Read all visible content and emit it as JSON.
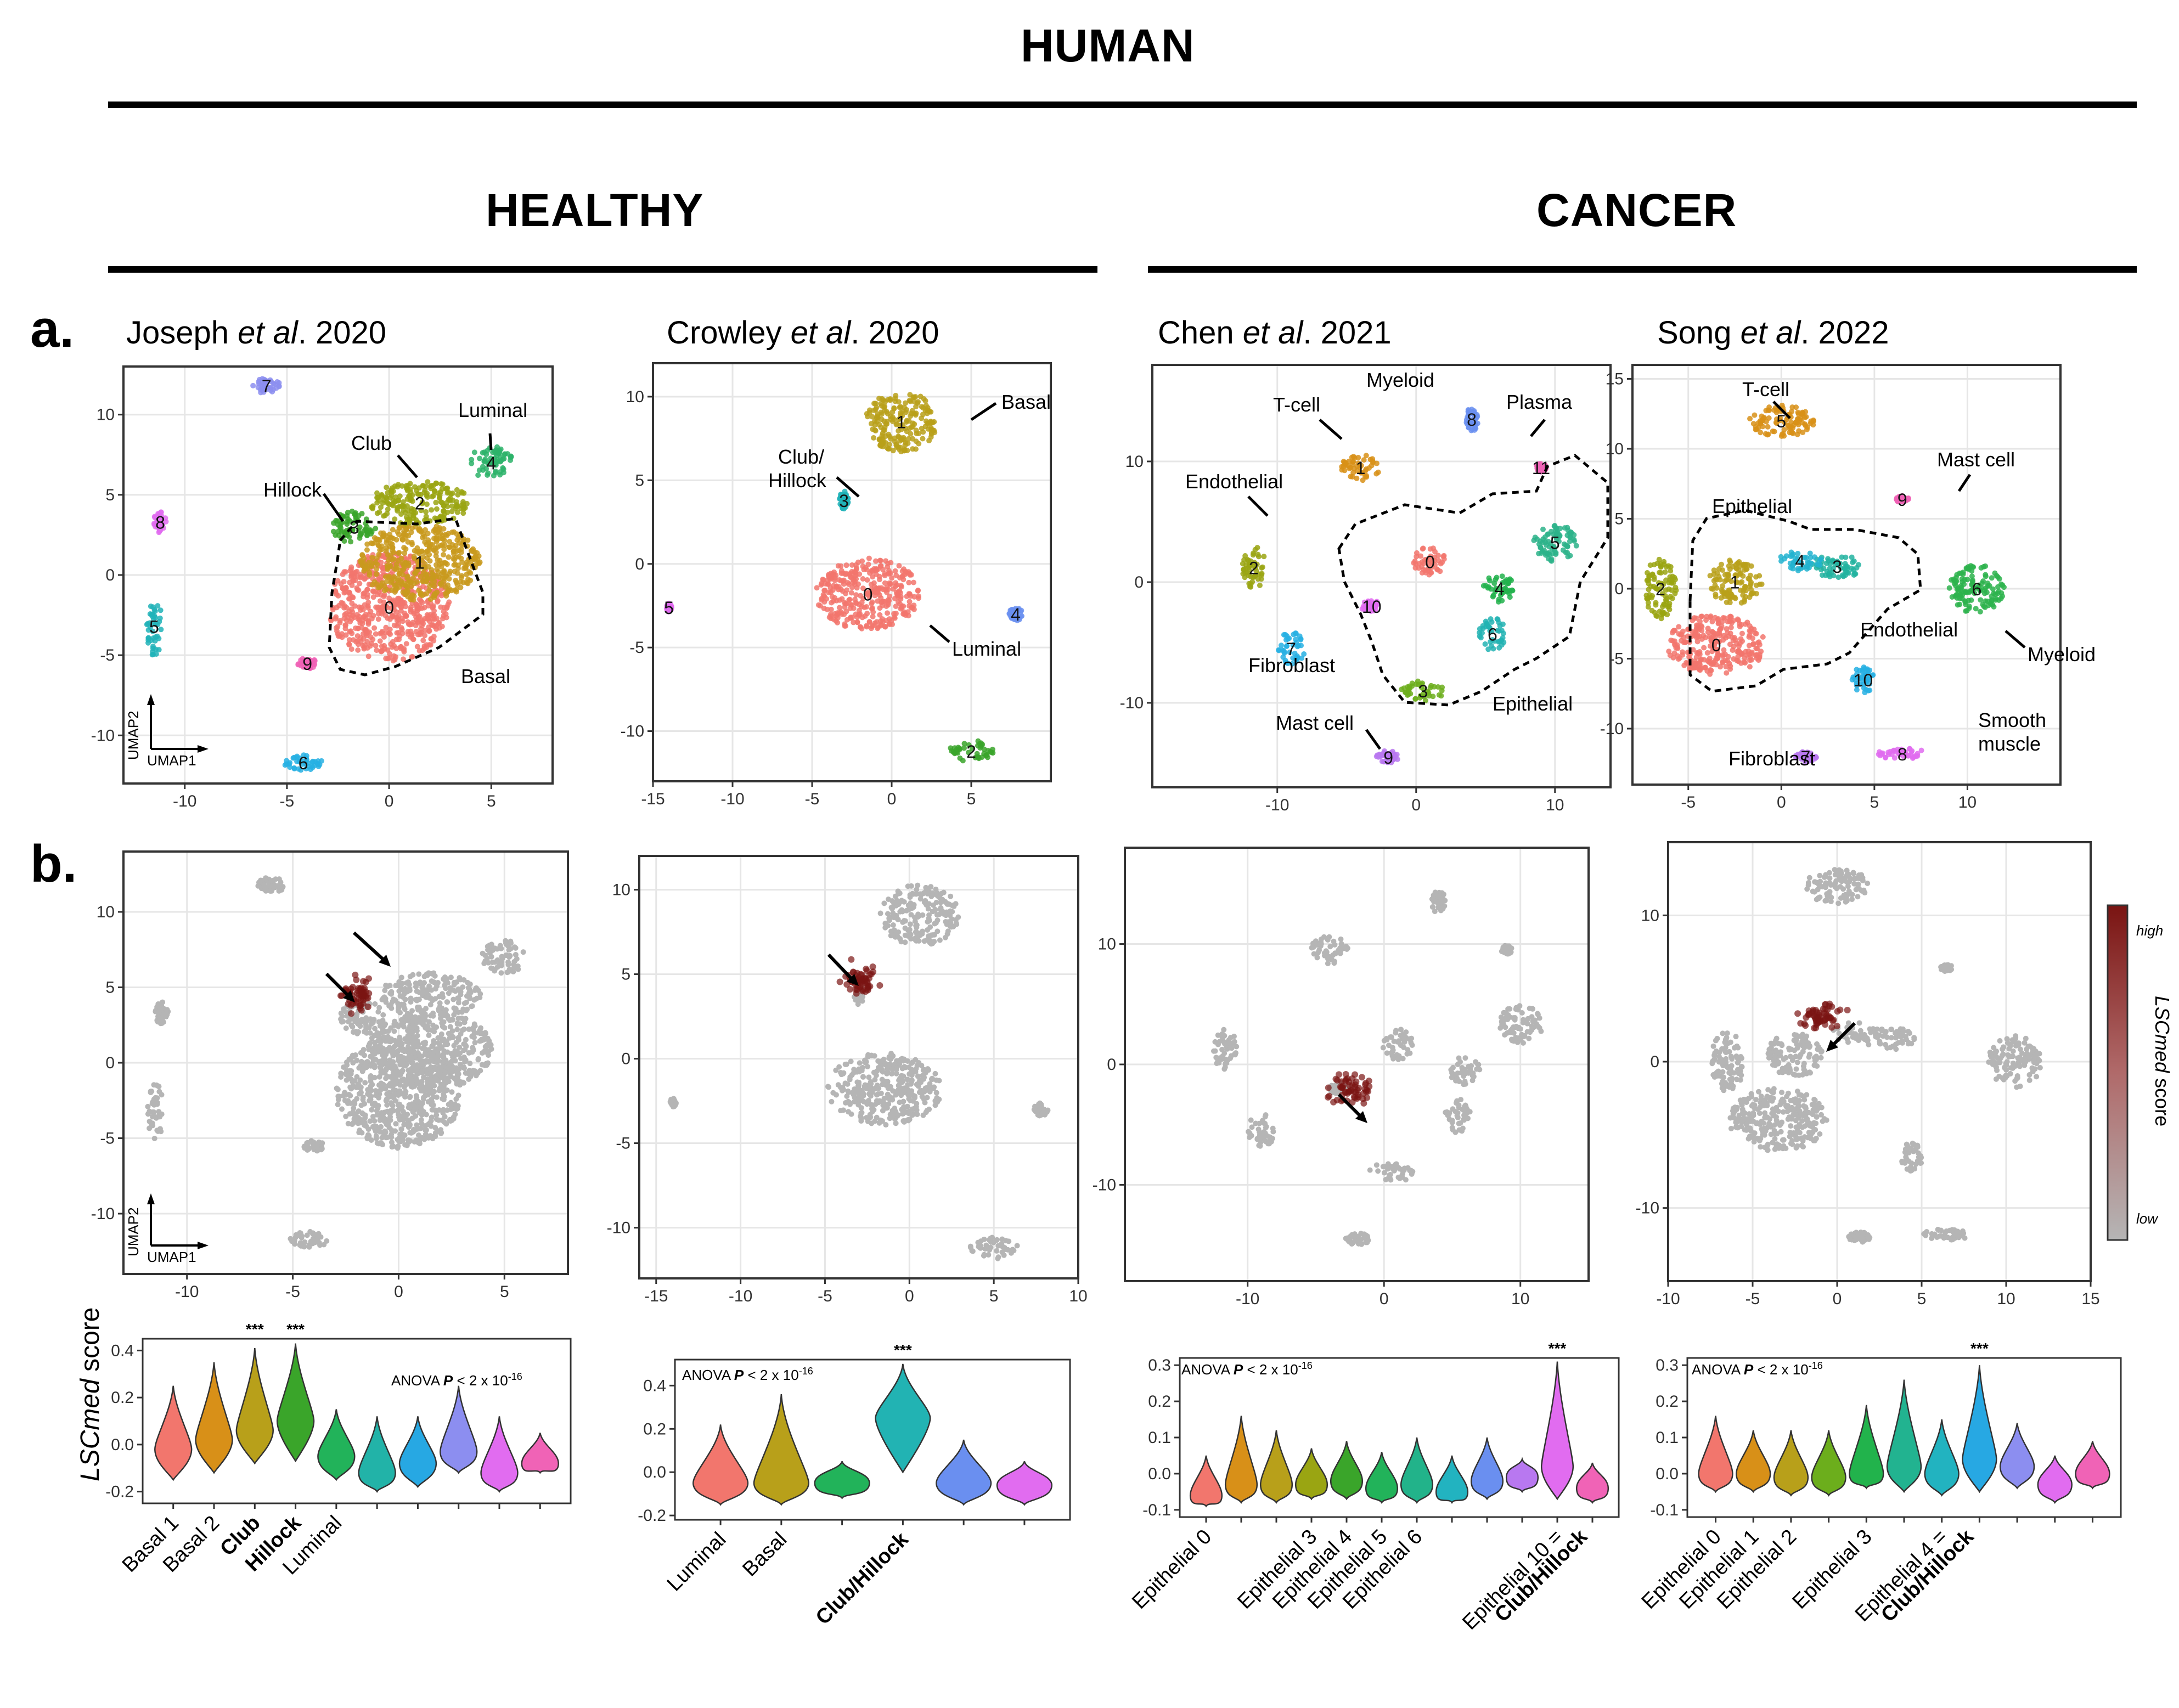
{
  "header": {
    "title": "HUMAN",
    "healthy": "HEALTHY",
    "cancer": "CANCER"
  },
  "panel_labels": {
    "a": "a.",
    "b": "b."
  },
  "studies": [
    {
      "author": "Joseph",
      "etal": "et al",
      "year": ". 2020"
    },
    {
      "author": "Crowley",
      "etal": "et al",
      "year": ". 2020"
    },
    {
      "author": "Chen",
      "etal": "et al",
      "year": ". 2021"
    },
    {
      "author": "Song",
      "etal": "et al",
      "year": ". 2022"
    }
  ],
  "axis_labels": {
    "umap1": "UMAP1",
    "umap2": "UMAP2"
  },
  "colorbar": {
    "high": "high",
    "low": "low",
    "score_italic": "LSCmed",
    "score_plain": " score",
    "high_color": "#7a1412",
    "low_color": "#b5b5b5"
  },
  "violin_ylabel": {
    "italic": "LSCmed",
    "plain": " score"
  },
  "anova": {
    "prefix": "ANOVA ",
    "p": "P",
    "rest": " < 2 x 10",
    "exp": "-16"
  },
  "significance": "***",
  "chart_data": [
    {
      "type": "scatter",
      "name": "joseph-umap",
      "xlim": [
        -13,
        8
      ],
      "ylim": [
        -13,
        13
      ],
      "xticks": [
        -10,
        -5,
        0,
        5
      ],
      "yticks": [
        -10,
        -5,
        0,
        5,
        10
      ],
      "xtick_labels": [
        "-10",
        "-5",
        "0",
        "5"
      ],
      "ytick_labels": [
        "-10",
        "-5",
        "0",
        "5",
        "10"
      ],
      "clusters": [
        {
          "id": "0",
          "x": 0,
          "y": -2,
          "color": "#f2766d"
        },
        {
          "id": "1",
          "x": 1.5,
          "y": 0.8,
          "color": "#c99a1d"
        },
        {
          "id": "2",
          "x": 1.5,
          "y": 4.5,
          "color": "#9aa512"
        },
        {
          "id": "3",
          "x": -1.7,
          "y": 3,
          "color": "#3aa52a"
        },
        {
          "id": "4",
          "x": 5,
          "y": 7,
          "color": "#2db36a"
        },
        {
          "id": "5",
          "x": -11.5,
          "y": -3.2,
          "color": "#21b3b8"
        },
        {
          "id": "6",
          "x": -4.2,
          "y": -11.7,
          "color": "#27b0e3"
        },
        {
          "id": "7",
          "x": -6,
          "y": 11.8,
          "color": "#8c8ef0"
        },
        {
          "id": "8",
          "x": -11.2,
          "y": 3.3,
          "color": "#e16cf0"
        },
        {
          "id": "9",
          "x": -4,
          "y": -5.5,
          "color": "#f063b6"
        }
      ],
      "annotations": [
        "Club",
        "Luminal",
        "Hillock",
        "Basal"
      ]
    },
    {
      "type": "scatter",
      "name": "crowley-umap",
      "xlim": [
        -15,
        10
      ],
      "ylim": [
        -13,
        12
      ],
      "xticks": [
        -15,
        -10,
        -5,
        0,
        5
      ],
      "yticks": [
        -10,
        -5,
        0,
        5,
        10
      ],
      "xtick_labels": [
        "-15",
        "-10",
        "-5",
        "0",
        "5"
      ],
      "ytick_labels": [
        "-10",
        "-5",
        "0",
        "5",
        "10"
      ],
      "clusters": [
        {
          "id": "0",
          "x": -1.5,
          "y": -1.8,
          "color": "#f2766d"
        },
        {
          "id": "1",
          "x": 0.6,
          "y": 8.5,
          "color": "#b8a01a"
        },
        {
          "id": "2",
          "x": 5,
          "y": -11.2,
          "color": "#3aa52a"
        },
        {
          "id": "3",
          "x": -3,
          "y": 3.8,
          "color": "#21b3b8"
        },
        {
          "id": "4",
          "x": 7.8,
          "y": -3,
          "color": "#6a8ff0"
        },
        {
          "id": "5",
          "x": -14,
          "y": -2.6,
          "color": "#e16cf0"
        }
      ],
      "annotations": [
        "Basal",
        "Club/",
        "Hillock",
        "Luminal"
      ]
    },
    {
      "type": "scatter",
      "name": "chen-umap",
      "xlim": [
        -19,
        14
      ],
      "ylim": [
        -17,
        18
      ],
      "xticks": [
        -10,
        0,
        10
      ],
      "yticks": [
        -10,
        0,
        10
      ],
      "xtick_labels": [
        "-10",
        "0",
        "10"
      ],
      "ytick_labels": [
        "-10",
        "0",
        "10"
      ],
      "clusters": [
        {
          "id": "0",
          "x": 1,
          "y": 1.7,
          "color": "#f2766d"
        },
        {
          "id": "1",
          "x": -4,
          "y": 9.5,
          "color": "#d89018"
        },
        {
          "id": "2",
          "x": -11.7,
          "y": 1.2,
          "color": "#9aa512"
        },
        {
          "id": "3",
          "x": 0.5,
          "y": -9,
          "color": "#6cae1c"
        },
        {
          "id": "4",
          "x": 6,
          "y": -0.5,
          "color": "#22b24c"
        },
        {
          "id": "5",
          "x": 10,
          "y": 3.3,
          "color": "#2db38a"
        },
        {
          "id": "6",
          "x": 5.5,
          "y": -4.3,
          "color": "#22b3b3"
        },
        {
          "id": "7",
          "x": -9,
          "y": -5.5,
          "color": "#27b0e3"
        },
        {
          "id": "8",
          "x": 4,
          "y": 13.5,
          "color": "#6a8ff0"
        },
        {
          "id": "9",
          "x": -2,
          "y": -14.5,
          "color": "#b878f0"
        },
        {
          "id": "10",
          "x": -3.2,
          "y": -2,
          "color": "#e16cf0"
        },
        {
          "id": "11",
          "x": 9,
          "y": 9.5,
          "color": "#f063b6"
        }
      ],
      "annotations": [
        "Myeloid",
        "T-cell",
        "Plasma",
        "Endothelial",
        "Fibroblast",
        "Mast cell",
        "Epithelial"
      ]
    },
    {
      "type": "scatter",
      "name": "song-umap",
      "xlim": [
        -8,
        15
      ],
      "ylim": [
        -14,
        16
      ],
      "xticks": [
        -5,
        0,
        5,
        10
      ],
      "yticks": [
        -10,
        -5,
        0,
        5,
        10,
        15
      ],
      "xtick_labels": [
        "-5",
        "0",
        "5",
        "10"
      ],
      "ytick_labels": [
        "-10",
        "-5",
        "0",
        "5",
        "10",
        "15"
      ],
      "clusters": [
        {
          "id": "0",
          "x": -3.5,
          "y": -4,
          "color": "#f2766d"
        },
        {
          "id": "1",
          "x": -2.5,
          "y": 0.5,
          "color": "#b8a01a"
        },
        {
          "id": "2",
          "x": -6.5,
          "y": 0,
          "color": "#9aa512"
        },
        {
          "id": "3",
          "x": 3,
          "y": 1.6,
          "color": "#22b3a0"
        },
        {
          "id": "4",
          "x": 1,
          "y": 2,
          "color": "#22b3d0"
        },
        {
          "id": "5",
          "x": 0,
          "y": 12,
          "color": "#d89018"
        },
        {
          "id": "6",
          "x": 10.5,
          "y": 0,
          "color": "#2db34c"
        },
        {
          "id": "7",
          "x": 1.3,
          "y": -12,
          "color": "#b878f0"
        },
        {
          "id": "8",
          "x": 6.5,
          "y": -11.8,
          "color": "#e16cf0"
        },
        {
          "id": "9",
          "x": 6.5,
          "y": 6.4,
          "color": "#f063b6"
        },
        {
          "id": "10",
          "x": 4.4,
          "y": -6.5,
          "color": "#27b0e3"
        }
      ],
      "annotations": [
        "T-cell",
        "Mast cell",
        "Epithelial",
        "Endothelial",
        "Myeloid",
        "Smooth",
        "muscle",
        "Fibroblast"
      ]
    },
    {
      "type": "scatter",
      "name": "joseph-score-umap",
      "xlim": [
        -13,
        8
      ],
      "ylim": [
        -14,
        14
      ],
      "xticks": [
        -10,
        -5,
        0,
        5
      ],
      "yticks": [
        -10,
        -5,
        0,
        5,
        10
      ],
      "xtick_labels": [
        "-10",
        "-5",
        "0",
        "5"
      ],
      "ytick_labels": [
        "-10",
        "-5",
        "0",
        "5",
        "10"
      ],
      "highlight": {
        "x": -2,
        "y": 4.5
      }
    },
    {
      "type": "scatter",
      "name": "crowley-score-umap",
      "xlim": [
        -16,
        10
      ],
      "ylim": [
        -13,
        12
      ],
      "xticks": [
        -15,
        -10,
        -5,
        0,
        5,
        10
      ],
      "yticks": [
        -10,
        -5,
        0,
        5,
        10
      ],
      "xtick_labels": [
        "-15",
        "-10",
        "-5",
        "0",
        "5",
        "10"
      ],
      "ytick_labels": [
        "-10",
        "-5",
        "0",
        "5",
        "10"
      ],
      "highlight": {
        "x": -3,
        "y": 4.5
      }
    },
    {
      "type": "scatter",
      "name": "chen-score-umap",
      "xlim": [
        -19,
        15
      ],
      "ylim": [
        -18,
        18
      ],
      "xticks": [
        -10,
        0,
        10
      ],
      "yticks": [
        -10,
        0,
        10
      ],
      "xtick_labels": [
        "-10",
        "0",
        "10"
      ],
      "ytick_labels": [
        "-10",
        "0",
        "10"
      ],
      "highlight": {
        "x": -2.5,
        "y": -2
      }
    },
    {
      "type": "scatter",
      "name": "song-score-umap",
      "xlim": [
        -10,
        15
      ],
      "ylim": [
        -15,
        15
      ],
      "xticks": [
        -10,
        -5,
        0,
        5,
        10,
        15
      ],
      "yticks": [
        -10,
        0,
        10
      ],
      "xtick_labels": [
        "-10",
        "-5",
        "0",
        "5",
        "10",
        "15"
      ],
      "ytick_labels": [
        "-10",
        "0",
        "10"
      ],
      "highlight": {
        "x": -1,
        "y": 3
      }
    },
    {
      "type": "violin",
      "name": "joseph-violin",
      "ylim": [
        -0.25,
        0.45
      ],
      "yticks": [
        -0.2,
        0,
        0.2,
        0.4
      ],
      "ytick_labels": [
        "-0.2",
        "0.0",
        "0.2",
        "0.4"
      ],
      "violins": [
        {
          "min": -0.15,
          "max": 0.25,
          "center": -0.02,
          "color": "#f2766d"
        },
        {
          "min": -0.12,
          "max": 0.35,
          "center": 0.02,
          "color": "#d89018"
        },
        {
          "min": -0.08,
          "max": 0.41,
          "center": 0.06,
          "color": "#b8a01a"
        },
        {
          "min": -0.07,
          "max": 0.43,
          "center": 0.1,
          "color": "#3aa52a"
        },
        {
          "min": -0.15,
          "max": 0.15,
          "center": -0.05,
          "color": "#22b35a"
        },
        {
          "min": -0.2,
          "max": 0.12,
          "center": -0.12,
          "color": "#22b3a8"
        },
        {
          "min": -0.18,
          "max": 0.12,
          "center": -0.08,
          "color": "#27a8e3"
        },
        {
          "min": -0.12,
          "max": 0.25,
          "center": -0.03,
          "color": "#8c8ef0"
        },
        {
          "min": -0.2,
          "max": 0.12,
          "center": -0.12,
          "color": "#e16cf0"
        },
        {
          "min": -0.12,
          "max": 0.05,
          "center": -0.08,
          "color": "#f063b6"
        }
      ],
      "labels": [
        "Basal 1",
        "Basal 2",
        "Club",
        "Hillock",
        "Luminal"
      ],
      "bold": [
        false,
        false,
        true,
        true,
        false
      ],
      "label_positions": [
        0,
        1,
        2,
        3,
        4
      ],
      "stars": [
        2,
        3
      ]
    },
    {
      "type": "violin",
      "name": "crowley-violin",
      "ylim": [
        -0.22,
        0.52
      ],
      "yticks": [
        -0.2,
        0,
        0.2,
        0.4
      ],
      "ytick_labels": [
        "-0.2",
        "0.0",
        "0.2",
        "0.4"
      ],
      "violins": [
        {
          "min": -0.15,
          "max": 0.22,
          "center": -0.05,
          "color": "#f2766d"
        },
        {
          "min": -0.15,
          "max": 0.36,
          "center": -0.05,
          "color": "#b8a01a"
        },
        {
          "min": -0.12,
          "max": 0.05,
          "center": -0.05,
          "color": "#22b35a"
        },
        {
          "min": 0.0,
          "max": 0.5,
          "center": 0.25,
          "color": "#22b3b3"
        },
        {
          "min": -0.15,
          "max": 0.15,
          "center": -0.05,
          "color": "#6a8ff0"
        },
        {
          "min": -0.15,
          "max": 0.05,
          "center": -0.06,
          "color": "#e16cf0"
        }
      ],
      "labels": [
        "Luminal",
        "Basal",
        "Club/Hillock"
      ],
      "bold": [
        false,
        false,
        true
      ],
      "label_positions": [
        0,
        1,
        3
      ],
      "stars": [
        3
      ]
    },
    {
      "type": "violin",
      "name": "chen-violin",
      "ylim": [
        -0.12,
        0.32
      ],
      "yticks": [
        -0.1,
        0,
        0.1,
        0.2,
        0.3
      ],
      "ytick_labels": [
        "-0.1",
        "0.0",
        "0.1",
        "0.2",
        "0.3"
      ],
      "violins": [
        {
          "min": -0.09,
          "max": 0.05,
          "center": -0.06,
          "color": "#f2766d"
        },
        {
          "min": -0.08,
          "max": 0.16,
          "center": -0.03,
          "color": "#d89018"
        },
        {
          "min": -0.08,
          "max": 0.12,
          "center": -0.03,
          "color": "#b8a01a"
        },
        {
          "min": -0.07,
          "max": 0.07,
          "center": -0.03,
          "color": "#9aa512"
        },
        {
          "min": -0.07,
          "max": 0.09,
          "center": -0.02,
          "color": "#3aa52a"
        },
        {
          "min": -0.08,
          "max": 0.06,
          "center": -0.04,
          "color": "#22b35a"
        },
        {
          "min": -0.08,
          "max": 0.1,
          "center": -0.03,
          "color": "#22b38a"
        },
        {
          "min": -0.08,
          "max": 0.05,
          "center": -0.05,
          "color": "#22b3c0"
        },
        {
          "min": -0.07,
          "max": 0.1,
          "center": -0.02,
          "color": "#6a8ff0"
        },
        {
          "min": -0.05,
          "max": 0.04,
          "center": -0.01,
          "color": "#b878f0"
        },
        {
          "min": -0.07,
          "max": 0.31,
          "center": 0.02,
          "color": "#e16cf0"
        },
        {
          "min": -0.08,
          "max": 0.03,
          "center": -0.04,
          "color": "#f063b6"
        }
      ],
      "labels": [
        "Epithelial 0",
        "Epithelial 3",
        "Epithelial 4",
        "Epithelial 5",
        "Epithelial 6",
        "Epithelial 10 =",
        "Club/Hillock"
      ],
      "bold": [
        false,
        false,
        false,
        false,
        false,
        false,
        true
      ],
      "label_positions": [
        0,
        3,
        4,
        5,
        6,
        10,
        10.7
      ],
      "stars": [
        10
      ]
    },
    {
      "type": "violin",
      "name": "song-violin",
      "ylim": [
        -0.12,
        0.32
      ],
      "yticks": [
        -0.1,
        0,
        0.1,
        0.2,
        0.3
      ],
      "ytick_labels": [
        "-0.1",
        "0.0",
        "0.1",
        "0.2",
        "0.3"
      ],
      "violins": [
        {
          "min": -0.05,
          "max": 0.16,
          "center": 0.0,
          "color": "#f2766d"
        },
        {
          "min": -0.05,
          "max": 0.12,
          "center": 0.0,
          "color": "#d89018"
        },
        {
          "min": -0.06,
          "max": 0.12,
          "center": -0.01,
          "color": "#b8a01a"
        },
        {
          "min": -0.06,
          "max": 0.12,
          "center": -0.01,
          "color": "#6cae1c"
        },
        {
          "min": -0.04,
          "max": 0.19,
          "center": 0.0,
          "color": "#22b34c"
        },
        {
          "min": -0.05,
          "max": 0.26,
          "center": 0.02,
          "color": "#22b390"
        },
        {
          "min": -0.06,
          "max": 0.15,
          "center": 0.0,
          "color": "#22b3c0"
        },
        {
          "min": -0.05,
          "max": 0.3,
          "center": 0.04,
          "color": "#27a8e3"
        },
        {
          "min": -0.04,
          "max": 0.14,
          "center": 0.02,
          "color": "#8c8ef0"
        },
        {
          "min": -0.08,
          "max": 0.05,
          "center": -0.03,
          "color": "#e16cf0"
        },
        {
          "min": -0.04,
          "max": 0.09,
          "center": 0.0,
          "color": "#f063b6"
        }
      ],
      "labels": [
        "Epithelial 0",
        "Epithelial 1",
        "Epithelial 2",
        "Epithelial 3",
        "Epithelial 4 =",
        "Club/Hillock"
      ],
      "bold": [
        false,
        false,
        false,
        false,
        false,
        true
      ],
      "label_positions": [
        0,
        1,
        2,
        4,
        6,
        6.7
      ],
      "stars": [
        7
      ]
    }
  ]
}
